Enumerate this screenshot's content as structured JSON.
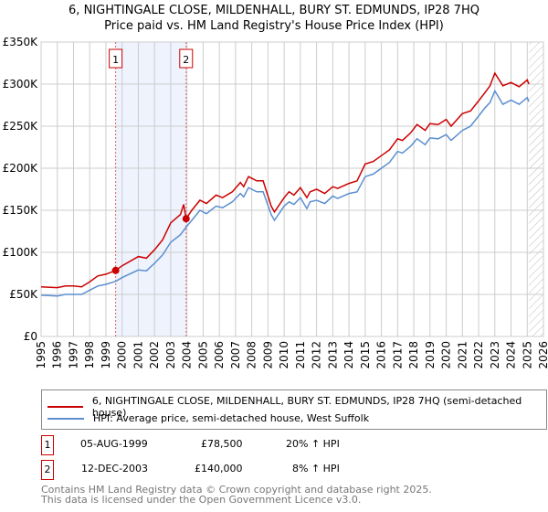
{
  "chart_data": {
    "type": "line",
    "title": "6, NIGHTINGALE CLOSE, MILDENHALL, BURY ST. EDMUNDS, IP28 7HQ",
    "subtitle": "Price paid vs. HM Land Registry's House Price Index (HPI)",
    "xlim": [
      1995,
      2026
    ],
    "ylim": [
      0,
      350000
    ],
    "x_ticks": [
      "1995",
      "1996",
      "1997",
      "1998",
      "1999",
      "2000",
      "2001",
      "2002",
      "2003",
      "2004",
      "2005",
      "2006",
      "2007",
      "2008",
      "2009",
      "2010",
      "2011",
      "2012",
      "2013",
      "2014",
      "2015",
      "2016",
      "2017",
      "2018",
      "2019",
      "2020",
      "2021",
      "2022",
      "2023",
      "2024",
      "2025",
      "2026"
    ],
    "y_ticks": [
      {
        "v": 0,
        "label": "£0"
      },
      {
        "v": 50000,
        "label": "£50K"
      },
      {
        "v": 100000,
        "label": "£100K"
      },
      {
        "v": 150000,
        "label": "£150K"
      },
      {
        "v": 200000,
        "label": "£200K"
      },
      {
        "v": 250000,
        "label": "£250K"
      },
      {
        "v": 300000,
        "label": "£300K"
      },
      {
        "v": 350000,
        "label": "£350K"
      }
    ],
    "grid": true,
    "series": [
      {
        "name": "6, NIGHTINGALE CLOSE, MILDENHALL, BURY ST. EDMUNDS, IP28 7HQ (semi-detached house)",
        "color": "#cc0000",
        "x": [
          1995,
          1996,
          1996.5,
          1997,
          1997.5,
          1998,
          1998.5,
          1999,
          1999.6,
          2000,
          2001,
          2001.5,
          2002,
          2002.5,
          2003,
          2003.6,
          2003.8,
          2003.95,
          2004.3,
          2004.8,
          2005.2,
          2005.8,
          2006.2,
          2006.8,
          2007.3,
          2007.5,
          2007.8,
          2008.3,
          2008.7,
          2009.2,
          2009.4,
          2010,
          2010.3,
          2010.6,
          2011,
          2011.4,
          2011.6,
          2012,
          2012.5,
          2013,
          2013.3,
          2014,
          2014.5,
          2015,
          2015.5,
          2016,
          2016.5,
          2017,
          2017.3,
          2017.8,
          2018.2,
          2018.7,
          2019,
          2019.5,
          2020,
          2020.3,
          2021,
          2021.5,
          2022,
          2022.4,
          2022.7,
          2023,
          2023.5,
          2024,
          2024.5,
          2025,
          2025.1
        ],
        "y": [
          59000,
          58000,
          60000,
          60000,
          59000,
          65000,
          72000,
          74000,
          78500,
          84000,
          95000,
          93000,
          103000,
          115000,
          135000,
          145000,
          157000,
          140000,
          150000,
          162000,
          158000,
          168000,
          165000,
          172000,
          183000,
          178000,
          190000,
          185000,
          185000,
          155000,
          148000,
          165000,
          172000,
          168000,
          177000,
          165000,
          172000,
          175000,
          170000,
          178000,
          176000,
          182000,
          185000,
          205000,
          208000,
          215000,
          222000,
          235000,
          233000,
          242000,
          252000,
          245000,
          253000,
          252000,
          258000,
          250000,
          265000,
          268000,
          280000,
          290000,
          298000,
          313000,
          298000,
          302000,
          297000,
          305000,
          300000
        ]
      },
      {
        "name": "HPI: Average price, semi-detached house, West Suffolk",
        "color": "#5b8fd0",
        "x": [
          1995,
          1996,
          1996.5,
          1997,
          1997.5,
          1998,
          1998.5,
          1999,
          1999.6,
          2000,
          2001,
          2001.5,
          2002,
          2002.5,
          2003,
          2003.6,
          2003.95,
          2004.3,
          2004.8,
          2005.2,
          2005.8,
          2006.2,
          2006.8,
          2007.3,
          2007.5,
          2007.8,
          2008.3,
          2008.7,
          2009.2,
          2009.4,
          2010,
          2010.3,
          2010.6,
          2011,
          2011.4,
          2011.6,
          2012,
          2012.5,
          2013,
          2013.3,
          2014,
          2014.5,
          2015,
          2015.5,
          2016,
          2016.5,
          2017,
          2017.3,
          2017.8,
          2018.2,
          2018.7,
          2019,
          2019.5,
          2020,
          2020.3,
          2021,
          2021.5,
          2022,
          2022.4,
          2022.7,
          2023,
          2023.5,
          2024,
          2024.5,
          2025,
          2025.1
        ],
        "y": [
          49000,
          48000,
          50000,
          50000,
          50000,
          55000,
          60000,
          62000,
          65500,
          70000,
          79000,
          78000,
          87000,
          97000,
          112000,
          121000,
          130000,
          138000,
          150000,
          146000,
          155000,
          153000,
          160000,
          170000,
          166000,
          177000,
          172000,
          172000,
          145000,
          138000,
          155000,
          160000,
          157000,
          165000,
          152000,
          160000,
          162000,
          158000,
          167000,
          164000,
          170000,
          172000,
          190000,
          193000,
          200000,
          207000,
          220000,
          218000,
          226000,
          235000,
          228000,
          236000,
          235000,
          240000,
          233000,
          245000,
          250000,
          262000,
          272000,
          278000,
          292000,
          276000,
          281000,
          276000,
          284000,
          279000
        ]
      }
    ],
    "sales": [
      {
        "label": "1",
        "x": 1999.6,
        "y": 78500
      },
      {
        "label": "2",
        "x": 2003.95,
        "y": 140000
      }
    ],
    "shaded_range": [
      1999.6,
      2003.95
    ],
    "forecast_from": 2025.1
  },
  "legend": {
    "items": [
      "6, NIGHTINGALE CLOSE, MILDENHALL, BURY ST. EDMUNDS, IP28 7HQ (semi-detached house)",
      "HPI: Average price, semi-detached house, West Suffolk"
    ]
  },
  "transactions": [
    {
      "num": "1",
      "date": "05-AUG-1999",
      "price": "£78,500",
      "hpi": "20% ↑ HPI"
    },
    {
      "num": "2",
      "date": "12-DEC-2003",
      "price": "£140,000",
      "hpi": "8% ↑ HPI"
    }
  ],
  "footer": {
    "line1": "Contains HM Land Registry data © Crown copyright and database right 2025.",
    "line2": "This data is licensed under the Open Government Licence v3.0."
  }
}
